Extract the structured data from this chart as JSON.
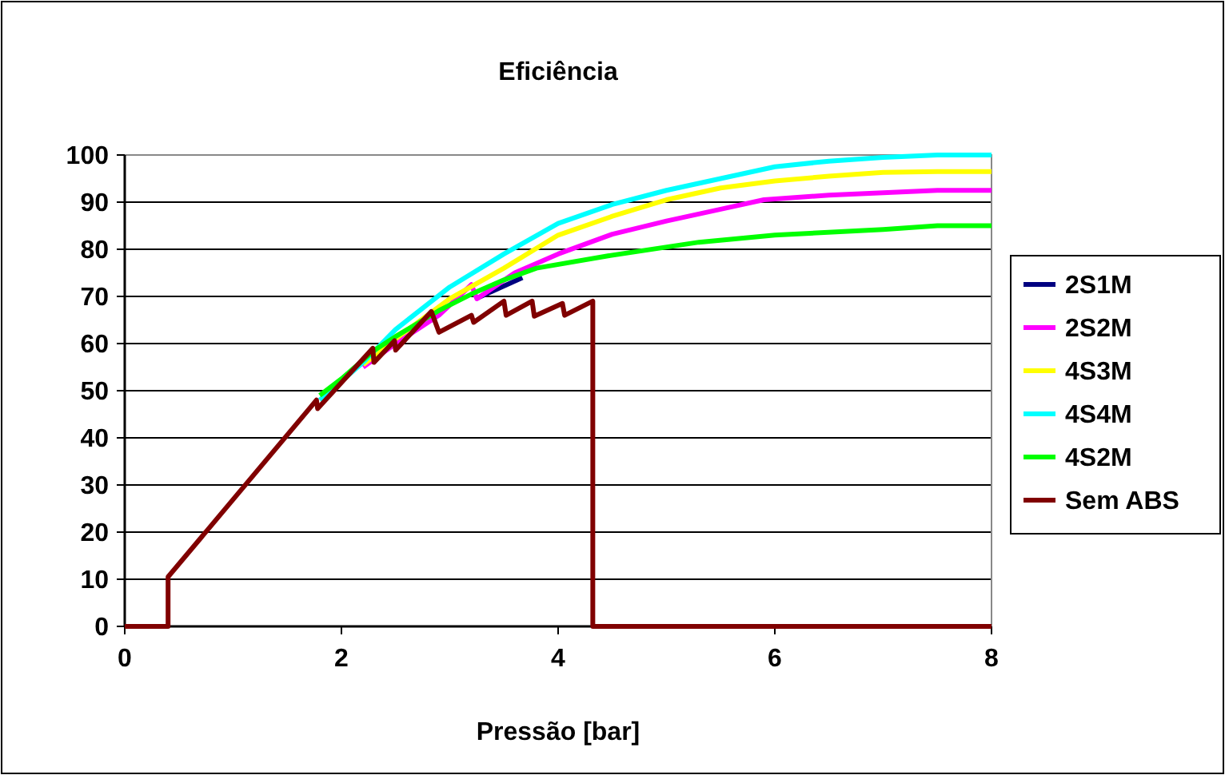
{
  "chart_data": {
    "type": "line",
    "title": "Eficiência",
    "xlabel": "Pressão [bar]",
    "xlim": [
      0,
      8
    ],
    "xticks": [
      0,
      2,
      4,
      6,
      8
    ],
    "ylim": [
      0,
      100
    ],
    "yticks": [
      0,
      10,
      20,
      30,
      40,
      50,
      60,
      70,
      80,
      90,
      100
    ],
    "grid": "y",
    "legend": "right",
    "marker": "none",
    "line_style": "solid",
    "series": [
      {
        "name": "2S1M",
        "color": "#000080",
        "x": [
          3.25,
          3.67
        ],
        "values": [
          69.6,
          74
        ]
      },
      {
        "name": "2S2M",
        "color": "#ff00ff",
        "x": [
          2.2,
          2.5,
          2.9,
          3.2,
          3.25,
          3.6,
          4,
          4.5,
          5,
          5.5,
          5.9,
          6.5,
          7,
          7.5,
          8
        ],
        "values": [
          55,
          60,
          66,
          72.5,
          69.5,
          75,
          79,
          83.2,
          86,
          88.5,
          90.5,
          91.5,
          92,
          92.5,
          92.5
        ]
      },
      {
        "name": "4S3M",
        "color": "#ffff00",
        "x": [
          2.2,
          2.5,
          3,
          3.5,
          4,
          4.5,
          5,
          5.5,
          6,
          6.5,
          7,
          7.5,
          8
        ],
        "values": [
          55.5,
          61,
          69.5,
          76,
          83,
          87,
          90.5,
          93,
          94.5,
          95.5,
          96.3,
          96.5,
          96.5
        ]
      },
      {
        "name": "4S4M",
        "color": "#00ffff",
        "x": [
          1.8,
          2.2,
          2.5,
          3,
          3.5,
          4,
          4.5,
          5,
          5.5,
          6,
          6.5,
          7,
          7.5,
          8
        ],
        "values": [
          48,
          56,
          63,
          72,
          79,
          85.5,
          89.5,
          92.5,
          95,
          97.5,
          98.7,
          99.5,
          100,
          100
        ]
      },
      {
        "name": "4S2M",
        "color": "#00ff00",
        "x": [
          1.8,
          2,
          2.3,
          2.5,
          2.9,
          3.2,
          3.5,
          3.8,
          4.46,
          5.3,
          6,
          7,
          7.5,
          8
        ],
        "values": [
          49,
          52.5,
          58.5,
          61.5,
          67,
          70.5,
          73.5,
          76,
          78.6,
          81.5,
          83,
          84.2,
          85,
          85
        ]
      },
      {
        "name": "Sem ABS",
        "color": "#800000",
        "x": [
          0,
          0.4,
          0.4,
          1.77,
          1.78,
          2.29,
          2.3,
          2.49,
          2.5,
          2.83,
          2.9,
          3.2,
          3.22,
          3.5,
          3.52,
          3.76,
          3.78,
          4.04,
          4.06,
          4.32,
          4.32,
          8
        ],
        "values": [
          0,
          0,
          10.5,
          48,
          46.2,
          59,
          56,
          60.6,
          58.6,
          66.8,
          62.4,
          66,
          64.5,
          69,
          66,
          69,
          65.8,
          68.5,
          66,
          69,
          0,
          0
        ]
      }
    ]
  }
}
